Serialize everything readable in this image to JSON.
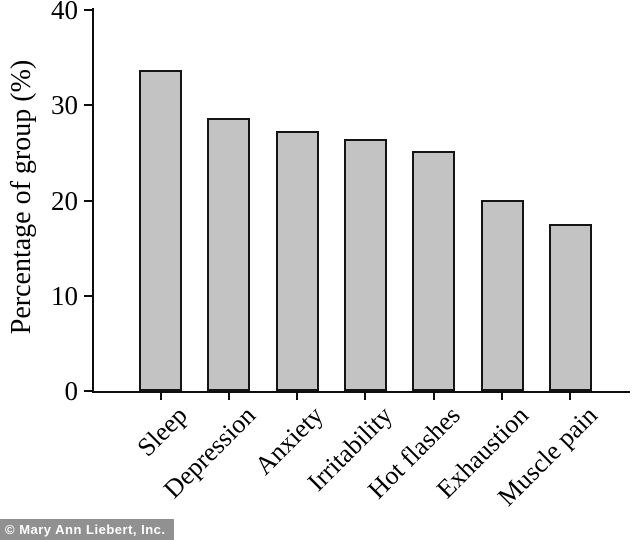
{
  "chart_data": {
    "type": "bar",
    "categories": [
      "Sleep",
      "Depression",
      "Anxiety",
      "Irritability",
      "Hot flashes",
      "Exhaustion",
      "Muscle pain"
    ],
    "values": [
      33.7,
      28.7,
      27.3,
      26.5,
      25.2,
      20.1,
      17.5
    ],
    "title": "",
    "xlabel": "",
    "ylabel": "Percentage of group (%)",
    "ylim": [
      0,
      40
    ],
    "yticks": [
      0,
      10,
      20,
      30,
      40
    ],
    "grid": false,
    "legend": "none",
    "bar_fill_color": "#c3c3c3",
    "bar_border_color": "#141414",
    "axis_color": "#0d0d0d"
  },
  "watermark": {
    "text": "© Mary Ann Liebert, Inc.",
    "bg_color": "#919191",
    "text_color": "#ffffff"
  }
}
